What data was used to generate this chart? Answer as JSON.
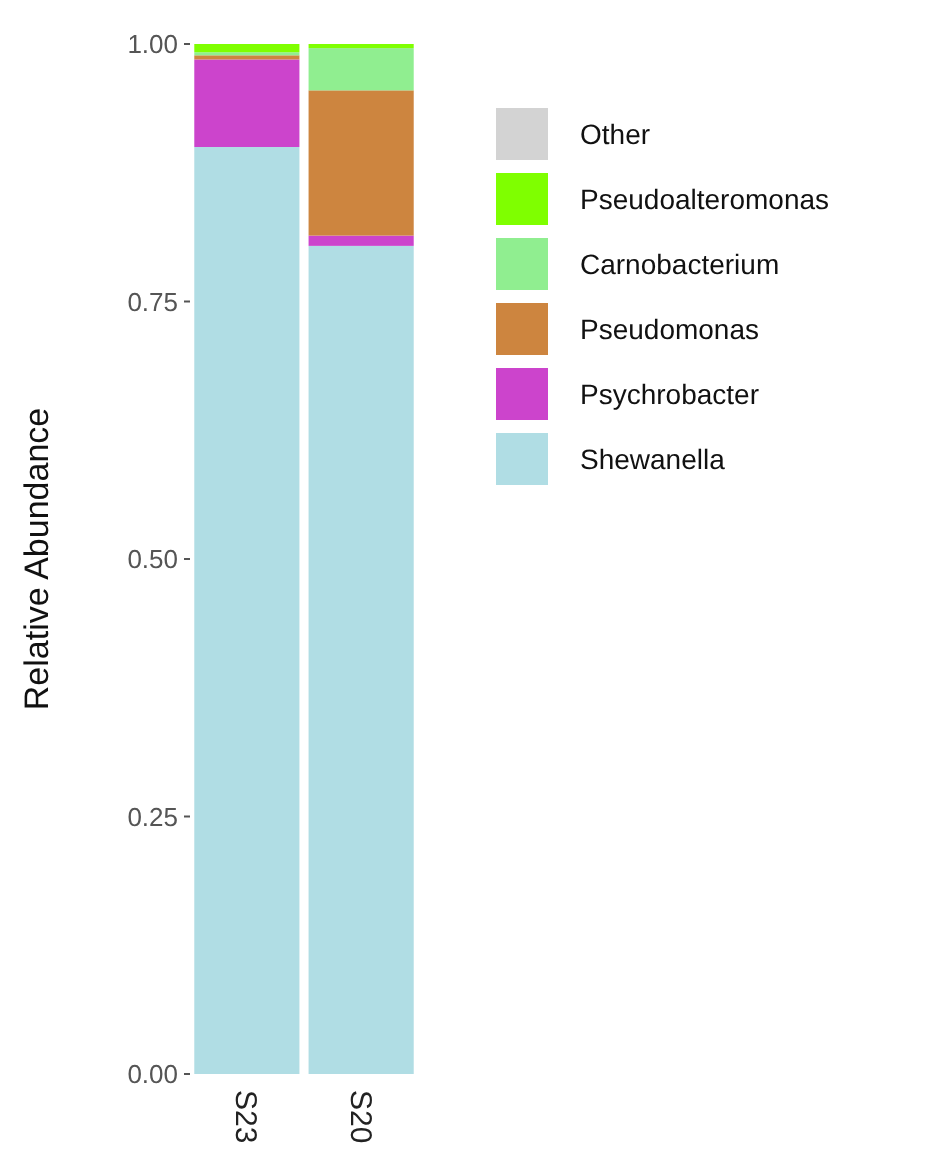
{
  "chart_data": {
    "type": "bar",
    "stacked": true,
    "ylabel": "Relative Abundance",
    "categories": [
      "S23",
      "S20"
    ],
    "ylim": [
      0,
      1
    ],
    "yticks": [
      {
        "value": 0,
        "label": "0.00"
      },
      {
        "value": 0.25,
        "label": "0.25"
      },
      {
        "value": 0.5,
        "label": "0.50"
      },
      {
        "value": 0.75,
        "label": "0.75"
      },
      {
        "value": 1,
        "label": "1.00"
      }
    ],
    "legend": "right",
    "series": [
      {
        "name": "Shewanella",
        "color": "#b0dde4",
        "values": [
          0.9,
          0.804
        ]
      },
      {
        "name": "Psychrobacter",
        "color": "#cc44cc",
        "values": [
          0.085,
          0.01
        ]
      },
      {
        "name": "Pseudomonas",
        "color": "#cd853f",
        "values": [
          0.004,
          0.141
        ]
      },
      {
        "name": "Carnobacterium",
        "color": "#90ee90",
        "values": [
          0.003,
          0.041
        ]
      },
      {
        "name": "Pseudoalteromonas",
        "color": "#7fff00",
        "values": [
          0.008,
          0.004
        ]
      },
      {
        "name": "Other",
        "color": "#d3d3d3",
        "values": [
          0,
          0
        ]
      }
    ]
  }
}
